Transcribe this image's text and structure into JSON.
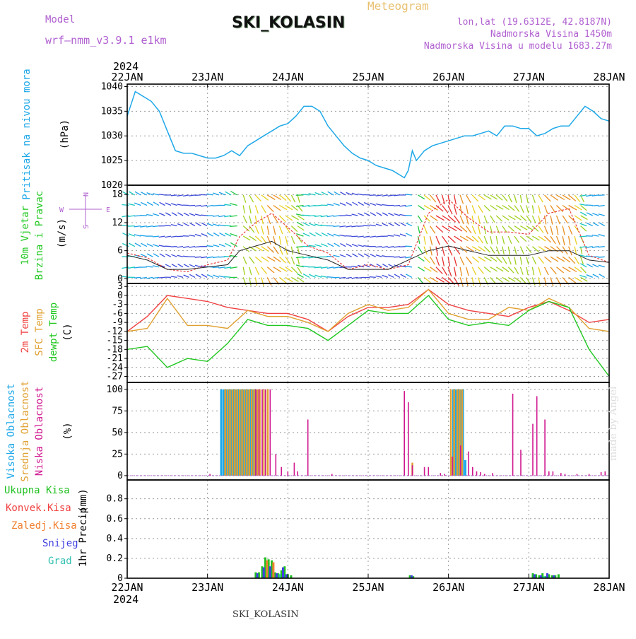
{
  "header": {
    "title": "SKI_KOLASIN",
    "meteogram_label": "Meteogram",
    "model_label": "Model",
    "model_value": "wrf—nmm_v3.9.1  e1km",
    "lonlat": "lon,lat (19.6312E, 42.8187N)",
    "altitude": "Nadmorska Visina 1450m",
    "model_altitude": "Nadmorska Visina u modelu 1683.27m",
    "footer": "SKI_KOLASIN",
    "made_by": "made by Angel"
  },
  "time_axis": {
    "year": "2024",
    "ticks": [
      "22JAN",
      "23JAN",
      "24JAN",
      "25JAN",
      "26JAN",
      "27JAN",
      "28JAN"
    ]
  },
  "colors": {
    "pressure": "#1ea8e8",
    "temp2m": "#f04040",
    "sfc": "#e0a030",
    "dewpt": "#20c820",
    "cloud_high": "#1ea8e8",
    "cloud_mid": "#e0a030",
    "cloud_low": "#d01890",
    "precip_total": "#20c020",
    "precip_conv": "#f04040",
    "precip_frz": "#f08030",
    "precip_snow": "#4040e0",
    "precip_grad": "#30c0b0"
  },
  "chart_data": [
    {
      "type": "line",
      "name": "pressure",
      "ylabel": "Pritisak na nivou mora",
      "unit": "(hPa)",
      "yticks": [
        "1020",
        "1025",
        "1030",
        "1035",
        "1040"
      ],
      "ylim": [
        1020,
        1040.5
      ],
      "x": [
        0,
        0.1,
        0.2,
        0.3,
        0.4,
        0.5,
        0.6,
        0.7,
        0.8,
        0.9,
        1.0,
        1.1,
        1.2,
        1.3,
        1.4,
        1.5,
        1.6,
        1.7,
        1.8,
        1.9,
        2.0,
        2.1,
        2.2,
        2.3,
        2.4,
        2.5,
        2.6,
        2.7,
        2.8,
        2.9,
        3.0,
        3.1,
        3.2,
        3.3,
        3.4,
        3.45,
        3.5,
        3.55,
        3.6,
        3.7,
        3.8,
        3.9,
        4.0,
        4.1,
        4.2,
        4.3,
        4.4,
        4.5,
        4.6,
        4.7,
        4.8,
        4.9,
        5.0,
        5.1,
        5.2,
        5.3,
        5.4,
        5.5,
        5.6,
        5.7,
        5.8,
        5.9,
        6.0
      ],
      "values": [
        1034,
        1039,
        1038,
        1037,
        1035,
        1031,
        1027,
        1026.5,
        1026.5,
        1026,
        1025.5,
        1025.5,
        1026,
        1027,
        1026,
        1028,
        1029,
        1030,
        1031,
        1032,
        1032.5,
        1034,
        1036,
        1036,
        1035,
        1032,
        1030,
        1028,
        1026.5,
        1025.5,
        1025,
        1024,
        1023.5,
        1023,
        1022,
        1021.5,
        1023,
        1027,
        1025,
        1027,
        1028,
        1028.5,
        1029,
        1029.5,
        1030,
        1030,
        1030.5,
        1031,
        1030,
        1032,
        1032,
        1031.5,
        1031.5,
        1030,
        1030.5,
        1031.5,
        1032,
        1032,
        1034,
        1036,
        1035,
        1033.5,
        1033
      ]
    },
    {
      "type": "line",
      "name": "wind",
      "ylabel": "10m Vjetar Brzina i Pravac",
      "unit": "(m/s)",
      "compass": [
        "N",
        "E",
        "S",
        "W"
      ],
      "yticks": [
        "0",
        "6",
        "12",
        "18"
      ],
      "ylim": [
        -1,
        20
      ],
      "x": [
        0,
        0.25,
        0.5,
        0.75,
        1.0,
        1.25,
        1.4,
        1.6,
        1.8,
        2.0,
        2.25,
        2.5,
        2.75,
        3.0,
        3.25,
        3.5,
        3.75,
        4.0,
        4.25,
        4.5,
        4.75,
        5.0,
        5.25,
        5.5,
        5.75,
        6.0
      ],
      "speed": [
        5.5,
        4.5,
        2,
        1.5,
        3,
        4,
        9,
        12,
        14,
        11,
        7,
        5.5,
        2,
        3,
        2,
        3,
        14,
        17,
        13,
        10,
        10,
        9.5,
        14,
        15,
        5,
        3.5
      ],
      "mean": [
        5,
        4,
        2,
        2,
        2.5,
        3,
        6,
        7,
        8,
        6,
        5,
        4,
        2,
        2,
        2,
        4,
        6,
        7,
        6,
        5,
        5,
        5,
        6,
        6,
        4,
        3.5
      ]
    },
    {
      "type": "line",
      "name": "temperature",
      "ylabel": [
        "2m Temp",
        "SFC Temp",
        "dewpt Temp"
      ],
      "unit": "(C)",
      "yticks": [
        "3",
        "0",
        "-3",
        "-6",
        "-9",
        "-12",
        "-15",
        "-18",
        "-21",
        "-24",
        "-27"
      ],
      "ylim": [
        -29,
        4
      ],
      "x": [
        0,
        0.25,
        0.5,
        0.75,
        1.0,
        1.25,
        1.5,
        1.75,
        2.0,
        2.25,
        2.5,
        2.75,
        3.0,
        3.25,
        3.5,
        3.75,
        4.0,
        4.25,
        4.5,
        4.75,
        5.0,
        5.25,
        5.5,
        5.75,
        6.0
      ],
      "series": [
        {
          "name": "2m Temp",
          "values": [
            -12,
            -7,
            0,
            -1,
            -2,
            -4,
            -5,
            -6,
            -6,
            -8,
            -12,
            -7,
            -4,
            -4,
            -3,
            2,
            -3,
            -5,
            -6,
            -7,
            -4,
            -2,
            -5,
            -9,
            -8
          ]
        },
        {
          "name": "SFC Temp",
          "values": [
            -12,
            -11,
            -1,
            -10,
            -10,
            -11,
            -5,
            -7,
            -7,
            -9,
            -12,
            -6,
            -3,
            -5,
            -4,
            2,
            -6,
            -8,
            -8,
            -4,
            -5,
            -1,
            -4,
            -11,
            -12
          ]
        },
        {
          "name": "dewpt Temp",
          "values": [
            -18,
            -17,
            -24,
            -21,
            -22,
            -16,
            -8,
            -10,
            -10,
            -11,
            -15,
            -10,
            -5,
            -6,
            -6,
            0,
            -8,
            -10,
            -9,
            -10,
            -5,
            -2,
            -4,
            -18,
            -27
          ]
        }
      ]
    },
    {
      "type": "bar",
      "name": "clouds",
      "ylabel": [
        "Visoka Oblacnost",
        "Srednja Oblacnost",
        "Niska Oblacnost"
      ],
      "unit": "(%)",
      "yticks": [
        "0",
        "25",
        "50",
        "75",
        "100"
      ],
      "ylim": [
        -5,
        108
      ],
      "series": [
        {
          "name": "Visoka Oblacnost",
          "x": [
            1.17,
            1.2,
            1.23,
            1.26,
            1.29,
            1.32,
            1.35,
            1.38,
            1.41,
            1.44,
            1.47,
            1.5,
            1.53,
            1.56,
            1.6,
            4.06,
            4.09,
            4.12,
            4.15,
            4.18,
            4.21
          ],
          "values": [
            100,
            100,
            100,
            100,
            100,
            100,
            100,
            100,
            100,
            100,
            100,
            100,
            100,
            100,
            100,
            100,
            100,
            100,
            100,
            100,
            18
          ]
        },
        {
          "name": "Srednja Oblacnost",
          "x": [
            1.22,
            1.25,
            1.28,
            1.31,
            1.34,
            1.37,
            1.4,
            1.43,
            1.46,
            1.49,
            1.52,
            1.55,
            1.58,
            1.62,
            1.65,
            1.69,
            1.72,
            1.75,
            3.55,
            4.03,
            4.07,
            4.11,
            4.14,
            4.17
          ],
          "values": [
            100,
            100,
            100,
            100,
            100,
            100,
            100,
            100,
            100,
            100,
            100,
            100,
            100,
            100,
            100,
            100,
            100,
            100,
            15,
            100,
            100,
            100,
            100,
            100
          ]
        },
        {
          "name": "Niska Oblacnost",
          "x": [
            1.03,
            1.6,
            1.64,
            1.68,
            1.72,
            1.78,
            1.85,
            1.92,
            2.0,
            2.08,
            2.12,
            2.25,
            2.55,
            3.45,
            3.5,
            3.55,
            3.7,
            3.75,
            3.9,
            3.95,
            4.05,
            4.15,
            4.25,
            4.3,
            4.35,
            4.4,
            4.45,
            4.55,
            4.8,
            4.9,
            5.05,
            5.1,
            5.2,
            5.25,
            5.3,
            5.4,
            5.45,
            5.6,
            5.75,
            5.9,
            5.95
          ],
          "values": [
            2,
            100,
            100,
            100,
            100,
            100,
            25,
            10,
            5,
            15,
            5,
            65,
            2,
            98,
            85,
            12,
            10,
            10,
            3,
            2,
            22,
            35,
            28,
            10,
            5,
            4,
            2,
            3,
            95,
            30,
            60,
            92,
            65,
            5,
            5,
            3,
            2,
            2,
            2,
            4,
            5
          ]
        }
      ]
    },
    {
      "type": "bar",
      "name": "precipitation",
      "ylabel": "1hr Precip",
      "unit": "(mm)",
      "legend": [
        "Ukupna Kisa",
        "Konvek.Kisa",
        "Zaledj.Kisa",
        "Snijeg",
        "Grad"
      ],
      "yticks": [
        "0",
        "0.2",
        "0.4",
        "0.6",
        "0.8"
      ],
      "ylim": [
        0,
        0.99
      ],
      "series": [
        {
          "name": "Ukupna Kisa",
          "x": [
            1.6,
            1.64,
            1.68,
            1.72,
            1.76,
            1.8,
            1.84,
            1.88,
            1.92,
            1.96,
            2.0,
            2.04,
            3.52,
            3.56,
            5.05,
            5.09,
            5.13,
            5.17,
            5.21,
            5.25,
            5.29,
            5.33,
            5.37
          ],
          "values": [
            0.06,
            0.06,
            0.12,
            0.21,
            0.19,
            0.18,
            0.06,
            0.05,
            0.08,
            0.12,
            0.04,
            0.03,
            0.03,
            0.02,
            0.05,
            0.04,
            0.03,
            0.05,
            0.02,
            0.04,
            0.03,
            0.03,
            0.04
          ]
        },
        {
          "name": "Snijeg",
          "x": [
            1.62,
            1.7,
            1.78,
            1.86,
            1.94,
            1.98,
            3.54,
            5.07,
            5.15,
            5.23,
            5.31
          ],
          "values": [
            0.05,
            0.11,
            0.12,
            0.05,
            0.11,
            0.04,
            0.03,
            0.04,
            0.03,
            0.05,
            0.03
          ]
        },
        {
          "name": "Zaledj.Kisa",
          "x": [
            1.74,
            1.82
          ],
          "values": [
            0.18,
            0.16
          ]
        },
        {
          "name": "Grad",
          "x": [
            1.9,
            5.19
          ],
          "values": [
            0.04,
            0.02
          ]
        }
      ]
    }
  ]
}
